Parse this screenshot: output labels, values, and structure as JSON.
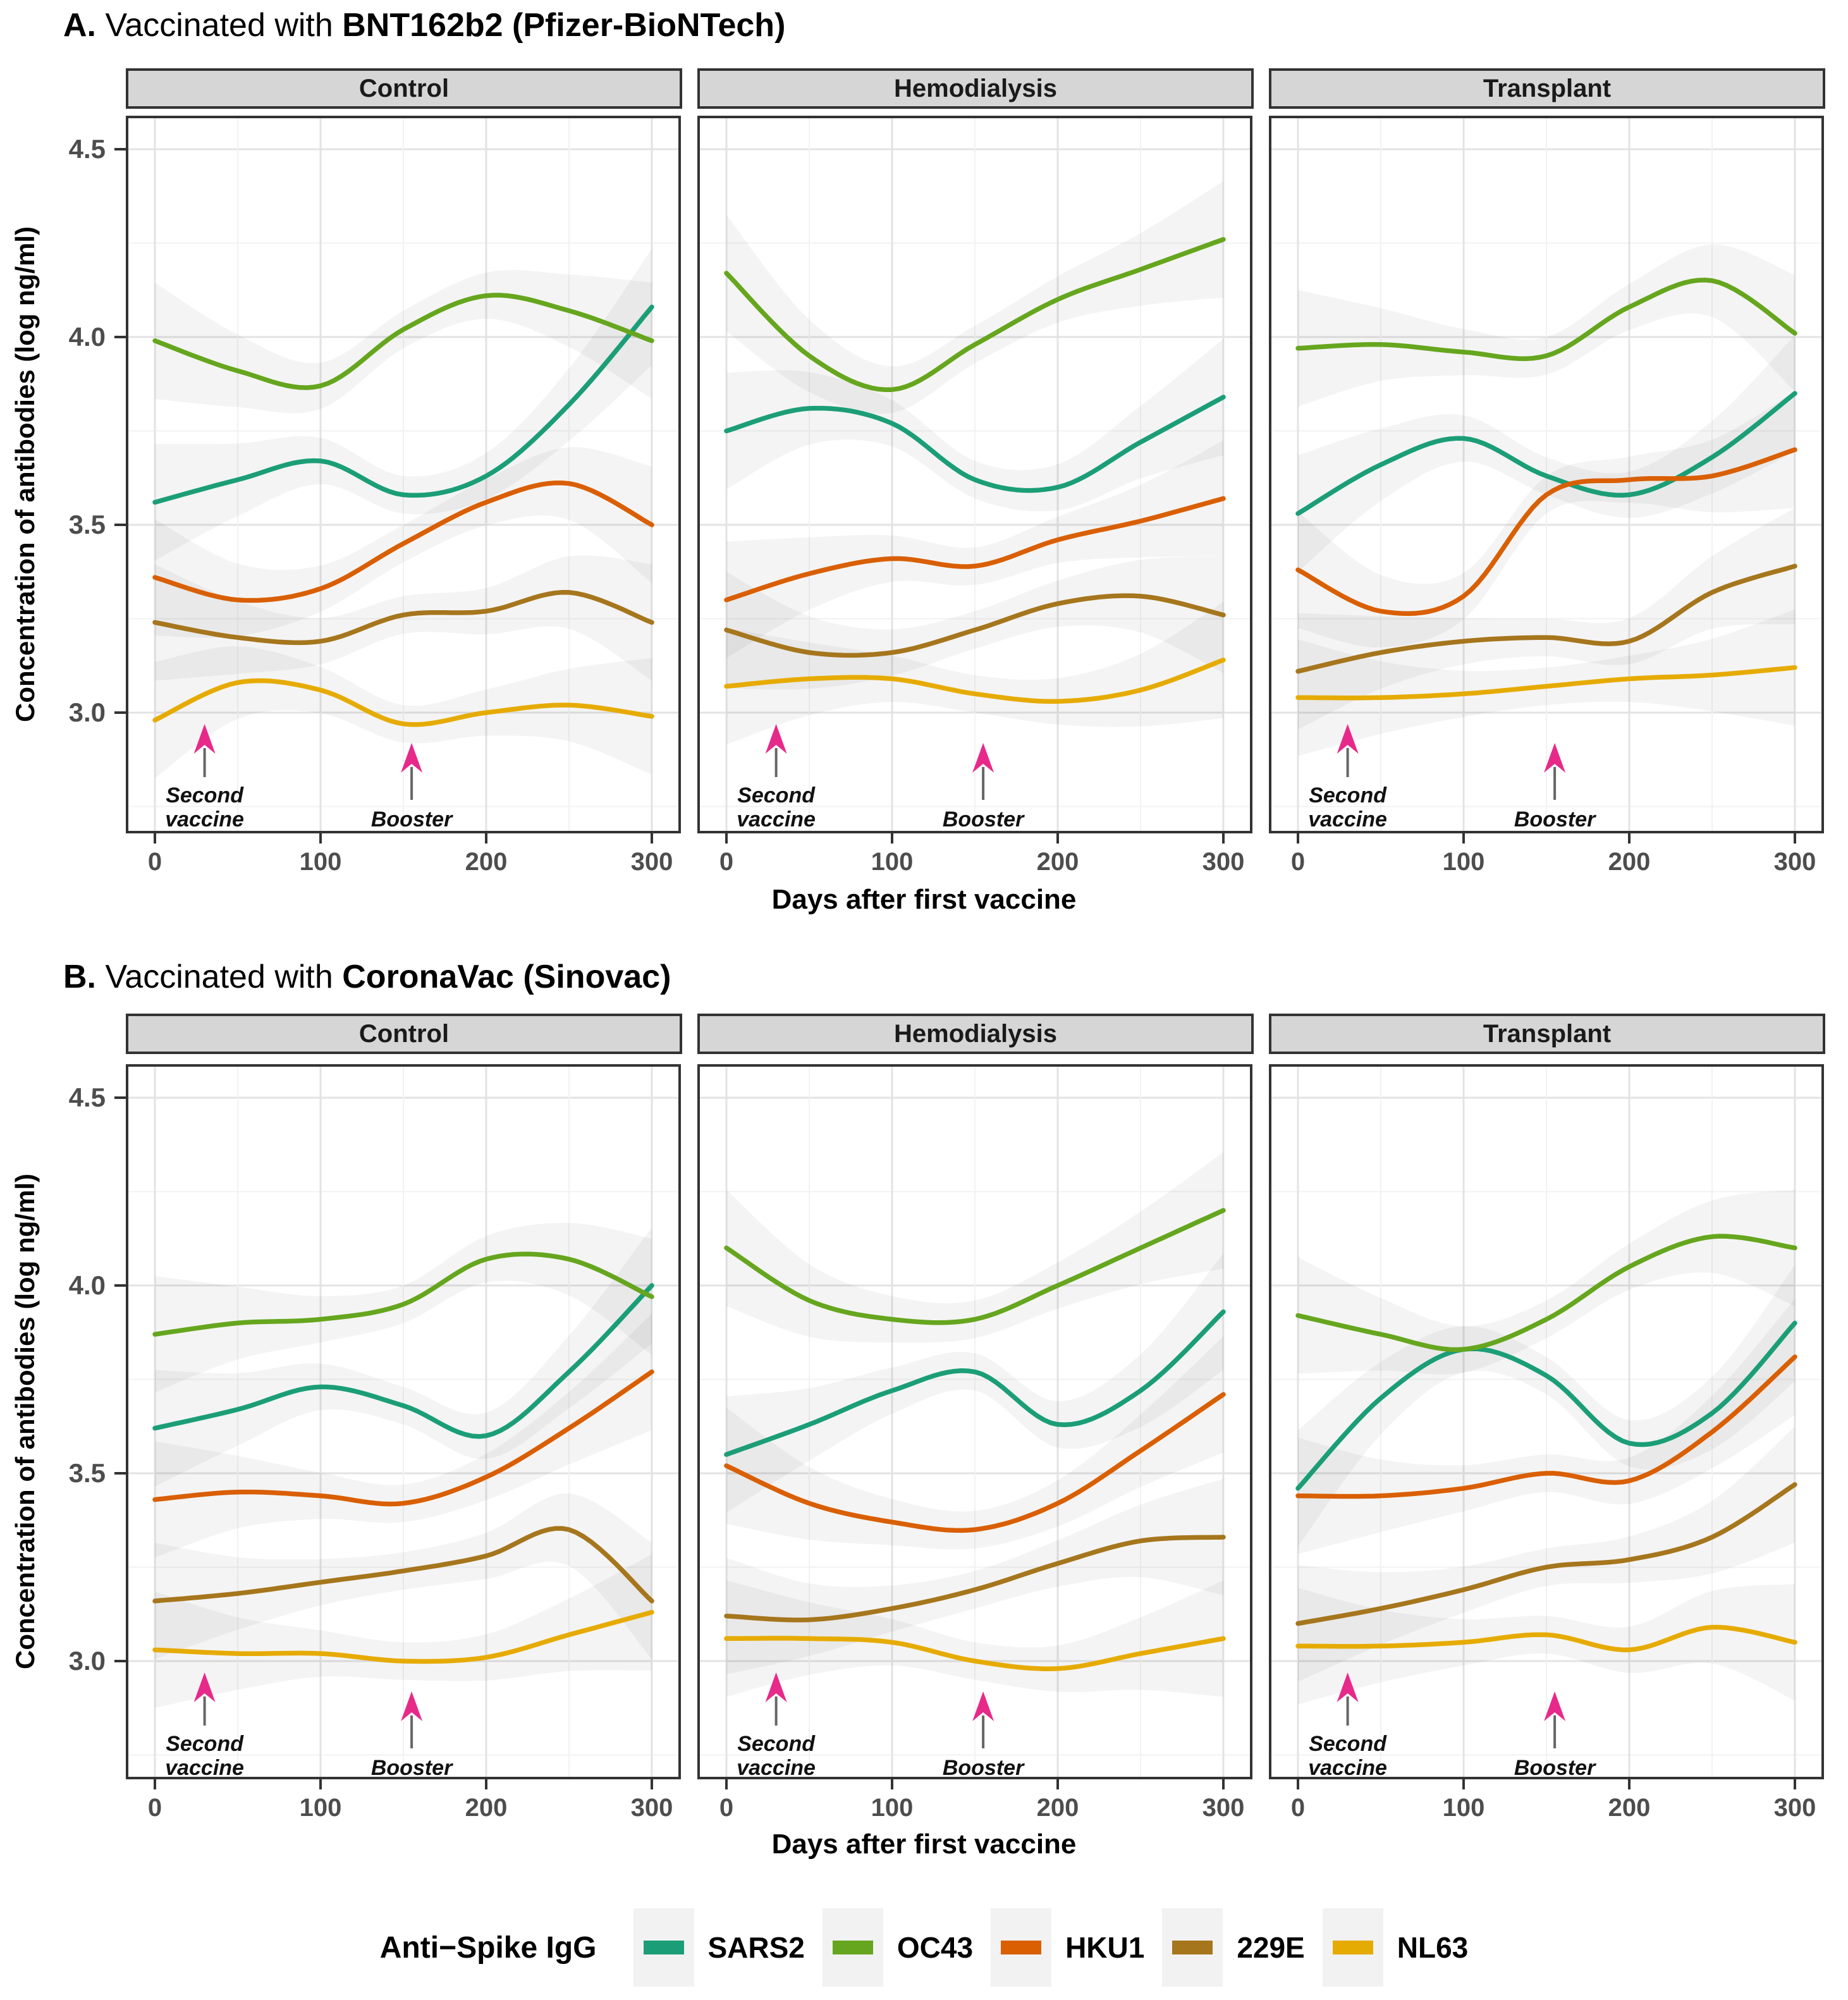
{
  "figure": {
    "panels": [
      {
        "id": "A",
        "title_prefix": "A.",
        "title_mid": " Vaccinated with ",
        "title_bold": "BNT162b2 (Pfizer-BioNTech)",
        "xlabel": "Days after first vaccine",
        "ylabel": "Concentration of antibodies (log ng/ml)"
      },
      {
        "id": "B",
        "title_prefix": "B.",
        "title_mid": " Vaccinated with ",
        "title_bold": "CoronaVac (Sinovac)",
        "xlabel": "Days after first vaccine",
        "ylabel": "Concentration of antibodies (log ng/ml)"
      }
    ]
  },
  "chart_data": {
    "type": "line",
    "x": [
      0,
      50,
      100,
      150,
      200,
      250,
      300
    ],
    "x_ticks": [
      0,
      100,
      200,
      300
    ],
    "y_ticks": [
      3.0,
      3.5,
      4.0,
      4.5
    ],
    "xlim": [
      -17,
      317
    ],
    "ylim": [
      2.68,
      4.59
    ],
    "grid": "on",
    "facets": [
      "Control",
      "Hemodialysis",
      "Transplant"
    ],
    "series_names": [
      "SARS2",
      "OC43",
      "HKU1",
      "229E",
      "NL63"
    ],
    "series_colors": {
      "SARS2": "#1B9E77",
      "OC43": "#66A61E",
      "HKU1": "#D95F02",
      "229E": "#A6761D",
      "NL63": "#E6AB02"
    },
    "panels": [
      {
        "panel": "A",
        "vaccine": "BNT162b2 (Pfizer-BioNTech)",
        "facet_series": {
          "Control": {
            "SARS2": [
              3.56,
              3.62,
              3.67,
              3.58,
              3.63,
              3.82,
              4.08
            ],
            "OC43": [
              3.99,
              3.91,
              3.87,
              4.02,
              4.11,
              4.07,
              3.99
            ],
            "HKU1": [
              3.36,
              3.3,
              3.33,
              3.45,
              3.56,
              3.61,
              3.5
            ],
            "229E": [
              3.24,
              3.2,
              3.19,
              3.26,
              3.27,
              3.32,
              3.24
            ],
            "NL63": [
              2.98,
              3.08,
              3.06,
              2.97,
              3.0,
              3.02,
              2.99
            ]
          },
          "Hemodialysis": {
            "SARS2": [
              3.75,
              3.81,
              3.77,
              3.62,
              3.6,
              3.72,
              3.84
            ],
            "OC43": [
              4.17,
              3.95,
              3.86,
              3.98,
              4.1,
              4.18,
              4.26
            ],
            "HKU1": [
              3.3,
              3.37,
              3.41,
              3.39,
              3.46,
              3.51,
              3.57
            ],
            "229E": [
              3.22,
              3.16,
              3.16,
              3.22,
              3.29,
              3.31,
              3.26
            ],
            "NL63": [
              3.07,
              3.09,
              3.09,
              3.05,
              3.03,
              3.06,
              3.14
            ]
          },
          "Transplant": {
            "SARS2": [
              3.53,
              3.66,
              3.73,
              3.63,
              3.58,
              3.68,
              3.85
            ],
            "OC43": [
              3.97,
              3.98,
              3.96,
              3.95,
              4.08,
              4.15,
              4.01
            ],
            "HKU1": [
              3.38,
              3.27,
              3.31,
              3.58,
              3.62,
              3.63,
              3.7
            ],
            "229E": [
              3.11,
              3.16,
              3.19,
              3.2,
              3.19,
              3.32,
              3.39
            ],
            "NL63": [
              3.04,
              3.04,
              3.05,
              3.07,
              3.09,
              3.1,
              3.12
            ]
          }
        }
      },
      {
        "panel": "B",
        "vaccine": "CoronaVac (Sinovac)",
        "facet_series": {
          "Control": {
            "SARS2": [
              3.62,
              3.67,
              3.73,
              3.68,
              3.6,
              3.77,
              4.0
            ],
            "OC43": [
              3.87,
              3.9,
              3.91,
              3.95,
              4.07,
              4.07,
              3.97
            ],
            "HKU1": [
              3.43,
              3.45,
              3.44,
              3.42,
              3.49,
              3.62,
              3.77
            ],
            "229E": [
              3.16,
              3.18,
              3.21,
              3.24,
              3.28,
              3.35,
              3.16
            ],
            "NL63": [
              3.03,
              3.02,
              3.02,
              3.0,
              3.01,
              3.07,
              3.13
            ]
          },
          "Hemodialysis": {
            "SARS2": [
              3.55,
              3.63,
              3.72,
              3.77,
              3.63,
              3.72,
              3.93
            ],
            "OC43": [
              4.1,
              3.96,
              3.91,
              3.91,
              4.0,
              4.1,
              4.2
            ],
            "HKU1": [
              3.52,
              3.42,
              3.37,
              3.35,
              3.42,
              3.56,
              3.71
            ],
            "229E": [
              3.12,
              3.11,
              3.14,
              3.19,
              3.26,
              3.32,
              3.33
            ],
            "NL63": [
              3.06,
              3.06,
              3.05,
              3.0,
              2.98,
              3.02,
              3.06
            ]
          },
          "Transplant": {
            "SARS2": [
              3.46,
              3.7,
              3.83,
              3.76,
              3.58,
              3.66,
              3.9
            ],
            "OC43": [
              3.92,
              3.87,
              3.83,
              3.91,
              4.05,
              4.13,
              4.1
            ],
            "HKU1": [
              3.44,
              3.44,
              3.46,
              3.5,
              3.48,
              3.61,
              3.81
            ],
            "229E": [
              3.1,
              3.14,
              3.19,
              3.25,
              3.27,
              3.33,
              3.47
            ],
            "NL63": [
              3.04,
              3.04,
              3.05,
              3.07,
              3.03,
              3.09,
              3.05
            ]
          }
        }
      }
    ],
    "annotations": [
      {
        "lines": [
          "Second",
          "vaccine"
        ],
        "x": 30
      },
      {
        "lines": [
          "Booster"
        ],
        "x": 155
      }
    ]
  },
  "legend": {
    "title": "Anti−Spike IgG",
    "items": [
      {
        "label": "SARS2",
        "color": "#1B9E77"
      },
      {
        "label": "OC43",
        "color": "#66A61E"
      },
      {
        "label": "HKU1",
        "color": "#D95F02"
      },
      {
        "label": "229E",
        "color": "#A6761D"
      },
      {
        "label": "NL63",
        "color": "#E6AB02"
      }
    ]
  },
  "colors": {
    "arrow": "#E7298A",
    "arrow_stem": "#666666",
    "strip_bg": "#D6D6D6",
    "panel_border": "#333333",
    "grid_major": "#E3E3E3",
    "grid_minor": "#F2F2F2",
    "axis_text": "#4D4D4D",
    "ribbon": "rgba(0,0,0,0.045)"
  }
}
